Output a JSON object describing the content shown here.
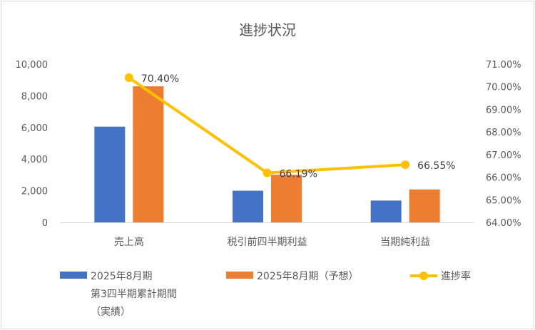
{
  "chart_data": {
    "type": "bar",
    "title": "進捗状況",
    "categories": [
      "売上高",
      "税引前四半期利益",
      "当期純利益"
    ],
    "series": [
      {
        "name": [
          "2025年8月期",
          "第3四半期累計期間",
          "（実績）"
        ],
        "axis": "left",
        "type": "bar",
        "color": "#4472c4",
        "values": [
          6050,
          2000,
          1380
        ]
      },
      {
        "name": "2025年8月期（予想）",
        "axis": "left",
        "type": "bar",
        "color": "#ed7d31",
        "values": [
          8600,
          3010,
          2080
        ]
      },
      {
        "name": "進捗率",
        "axis": "right",
        "type": "line",
        "color": "#ffc000",
        "values": [
          70.4,
          66.19,
          66.55
        ],
        "labels": [
          "70.40%",
          "66.19%",
          "66.55%"
        ]
      }
    ],
    "y_left": {
      "range": [
        0,
        10000
      ],
      "ticks": [
        "0",
        "2,000",
        "4,000",
        "6,000",
        "8,000",
        "10,000"
      ]
    },
    "y_right": {
      "range": [
        64.0,
        71.0
      ],
      "ticks": [
        "64.00%",
        "65.00%",
        "66.00%",
        "67.00%",
        "68.00%",
        "69.00%",
        "70.00%",
        "71.00%"
      ]
    },
    "grid": false,
    "legend_position": "bottom"
  }
}
